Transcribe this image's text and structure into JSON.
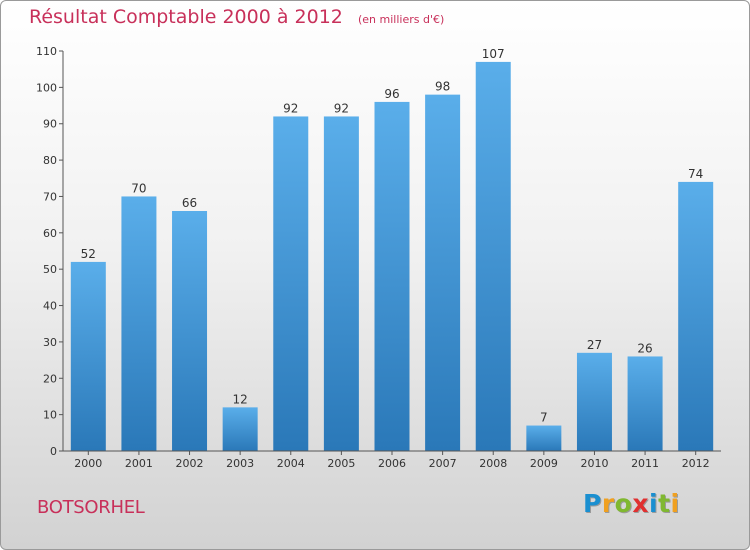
{
  "chart_data": {
    "type": "bar",
    "title": "Résultat Comptable 2000 à 2012",
    "subtitle": "(en milliers d'€)",
    "categories": [
      "2000",
      "2001",
      "2002",
      "2003",
      "2004",
      "2005",
      "2006",
      "2007",
      "2008",
      "2009",
      "2010",
      "2011",
      "2012"
    ],
    "values": [
      52,
      70,
      66,
      12,
      92,
      92,
      96,
      98,
      107,
      7,
      27,
      26,
      74
    ],
    "ylim": [
      0,
      110
    ],
    "yticks": [
      0,
      10,
      20,
      30,
      40,
      50,
      60,
      70,
      80,
      90,
      100,
      110
    ],
    "xlabel": "",
    "ylabel": "",
    "grid": false,
    "bar_color_top": "#5aaeea",
    "bar_color_bottom": "#2a78b8"
  },
  "place_name": "BOTSORHEL",
  "brand": {
    "letters": [
      "P",
      "r",
      "o",
      "x",
      "i",
      "t",
      "i"
    ],
    "colors": [
      "#1a8fd0",
      "#f0a020",
      "#80b830",
      "#e03030",
      "#1a8fd0",
      "#80b830",
      "#f0a020"
    ]
  },
  "colors": {
    "title": "#c8305a"
  }
}
